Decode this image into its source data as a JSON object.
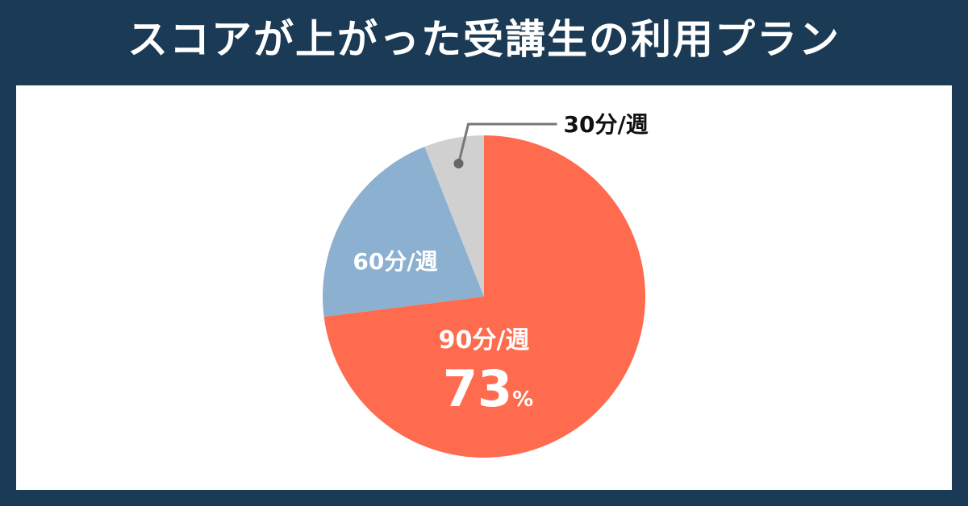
{
  "header": {
    "title": "スコアが上がった受講生の利用プラン"
  },
  "chart_data": {
    "type": "pie",
    "title": "スコアが上がった受講生の利用プラン",
    "slices": [
      {
        "label": "90分/週",
        "value": 73,
        "value_label": "73",
        "unit": "%",
        "color": "#ff6b4f"
      },
      {
        "label": "60分/週",
        "value": 21,
        "color": "#8cb0d0"
      },
      {
        "label": "30分/週",
        "value": 6,
        "color": "#d0d0d0"
      }
    ],
    "start_angle_deg": 0,
    "direction": "clockwise",
    "background_color": "#1b3a55",
    "panel_color": "#ffffff"
  }
}
